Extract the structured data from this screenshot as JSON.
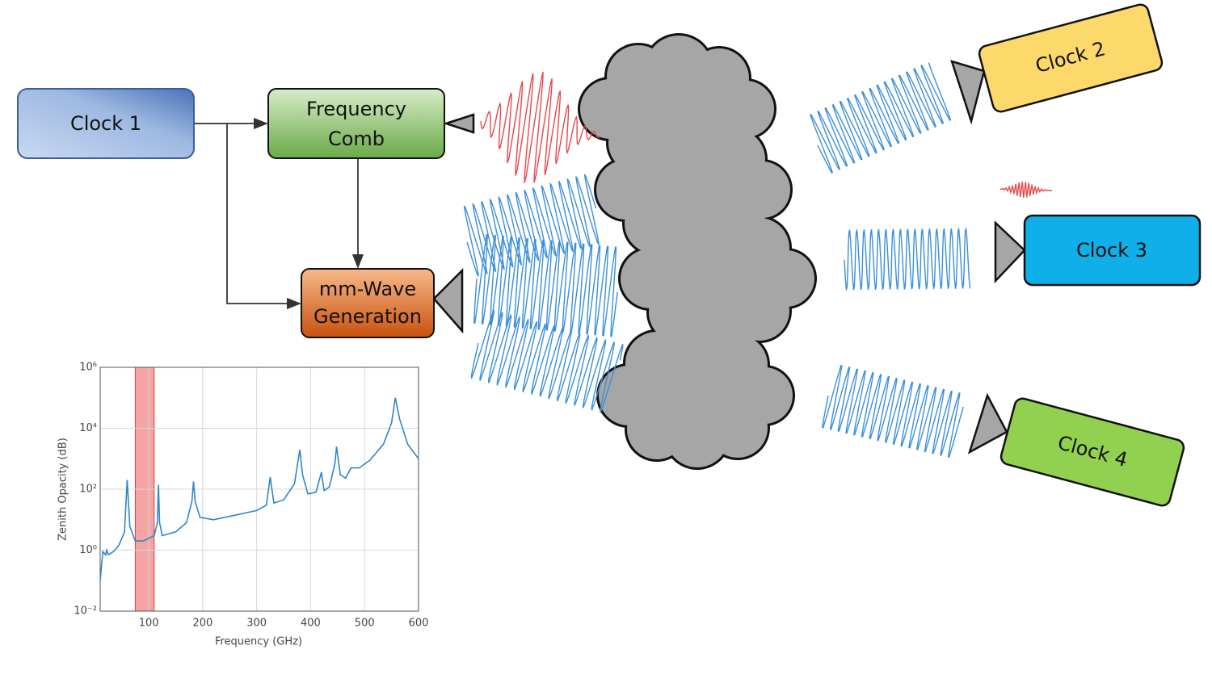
{
  "nodes": [
    {
      "label": "Clock 1"
    },
    {
      "lines": [
        "Frequency",
        "Comb"
      ]
    },
    {
      "lines": [
        "mm-Wave",
        "Generation"
      ]
    },
    {
      "label": "Clock 2"
    },
    {
      "label": "Clock 3"
    },
    {
      "label": "Clock 4"
    }
  ],
  "chart_data": {
    "type": "line",
    "xlabel": "Frequency (GHz)",
    "ylabel": "Zenith Opacity (dB)",
    "log_y": true,
    "grid": true,
    "xlim": [
      10,
      600
    ],
    "ylim": [
      0.01,
      1000000
    ],
    "xticks": [
      100,
      200,
      300,
      400,
      500,
      600
    ],
    "yticks": [
      {
        "value": 0.01,
        "label": "10⁻²"
      },
      {
        "value": 1,
        "label": "10⁰"
      },
      {
        "value": 100,
        "label": "10²"
      },
      {
        "value": 10000,
        "label": "10⁴"
      },
      {
        "value": 1000000,
        "label": "10⁶"
      }
    ],
    "highlight": {
      "x": [
        75,
        110
      ],
      "color": "#f4a4a4"
    },
    "series": [
      {
        "color": "#2f86c8",
        "x": [
          10,
          15,
          20,
          22,
          25,
          35,
          45,
          55,
          60,
          65,
          75,
          90,
          110,
          116,
          118,
          120,
          125,
          150,
          170,
          180,
          183,
          186,
          195,
          220,
          260,
          300,
          318,
          325,
          332,
          350,
          370,
          380,
          385,
          395,
          410,
          420,
          425,
          435,
          445,
          448,
          455,
          465,
          475,
          490,
          510,
          535,
          550,
          557,
          565,
          580,
          600
        ],
        "values": [
          0.1,
          0.9,
          0.7,
          1,
          0.7,
          0.9,
          1.5,
          4,
          200,
          6,
          2,
          2,
          3,
          8,
          140,
          8,
          3,
          4,
          8,
          40,
          180,
          40,
          12,
          10,
          14,
          20,
          30,
          250,
          35,
          45,
          150,
          2000,
          300,
          70,
          80,
          360,
          90,
          120,
          700,
          2500,
          300,
          230,
          500,
          500,
          900,
          3000,
          15000,
          100000,
          20000,
          3000,
          1000
        ]
      }
    ]
  }
}
